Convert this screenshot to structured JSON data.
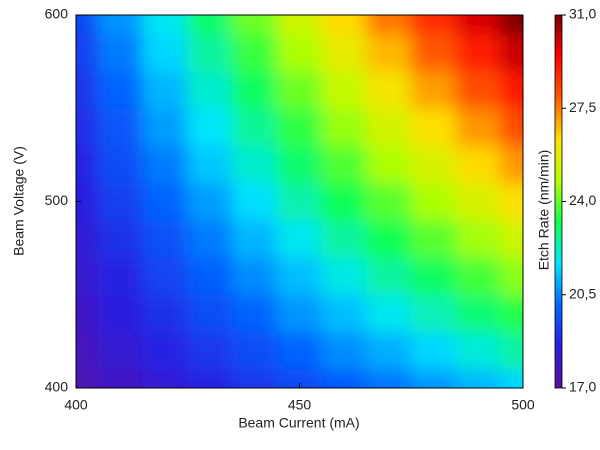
{
  "chart_data": {
    "type": "heatmap",
    "x_label": "Beam Current (mA)",
    "y_label": "Beam Voltage (V)",
    "colorbar_label": "Etch Rate (nm/min)",
    "x": [
      400,
      410,
      420,
      430,
      440,
      450,
      460,
      470,
      480,
      490,
      500
    ],
    "y": [
      400,
      420,
      440,
      460,
      480,
      500,
      520,
      540,
      560,
      580,
      600
    ],
    "z": [
      [
        17.5,
        17.9,
        18.3,
        18.7,
        19.1,
        19.5,
        19.9,
        20.3,
        20.7,
        21.1,
        21.5
      ],
      [
        17.7,
        18.2,
        18.7,
        19.1,
        19.6,
        20.1,
        20.6,
        21.0,
        21.5,
        22.0,
        22.5
      ],
      [
        17.9,
        18.5,
        19.0,
        19.6,
        20.1,
        20.7,
        21.2,
        21.8,
        22.3,
        22.9,
        23.4
      ],
      [
        18.1,
        18.7,
        19.4,
        20.0,
        20.6,
        21.2,
        21.9,
        22.5,
        23.1,
        23.7,
        24.4
      ],
      [
        18.3,
        19.0,
        19.7,
        20.4,
        21.1,
        21.8,
        22.5,
        23.2,
        23.9,
        24.6,
        25.3
      ],
      [
        18.5,
        19.3,
        20.1,
        20.8,
        21.6,
        22.4,
        23.2,
        23.9,
        24.7,
        25.5,
        26.3
      ],
      [
        18.7,
        19.6,
        20.4,
        21.3,
        22.1,
        23.0,
        23.8,
        24.7,
        25.5,
        26.4,
        27.2
      ],
      [
        18.9,
        19.8,
        20.8,
        21.7,
        22.6,
        23.5,
        24.5,
        25.4,
        26.3,
        27.2,
        28.2
      ],
      [
        19.1,
        20.1,
        21.1,
        22.1,
        23.1,
        24.1,
        25.1,
        26.1,
        27.1,
        28.1,
        29.1
      ],
      [
        19.3,
        20.4,
        21.5,
        22.5,
        23.6,
        24.7,
        25.8,
        26.8,
        27.9,
        29.0,
        30.1
      ],
      [
        19.5,
        20.7,
        21.8,
        23.0,
        24.1,
        25.3,
        26.4,
        27.6,
        28.7,
        29.9,
        31.0
      ]
    ],
    "xlim": [
      400,
      500
    ],
    "ylim": [
      400,
      600
    ],
    "xticks": [
      400,
      450,
      500
    ],
    "yticks": [
      400,
      500,
      600
    ],
    "zlim": [
      17,
      31
    ],
    "zticks": [
      {
        "value": 17,
        "label": "17,0"
      },
      {
        "value": 20.5,
        "label": "20,5"
      },
      {
        "value": 24,
        "label": "24,0"
      },
      {
        "value": 27.5,
        "label": "27,5"
      },
      {
        "value": 31,
        "label": "31,0"
      }
    ],
    "colormap": [
      "#5c0f9e",
      "#2a1ee0",
      "#0064ff",
      "#00e5ff",
      "#10ff50",
      "#b4ff00",
      "#ffe000",
      "#ff5a00",
      "#ff0000",
      "#7a0000"
    ]
  }
}
